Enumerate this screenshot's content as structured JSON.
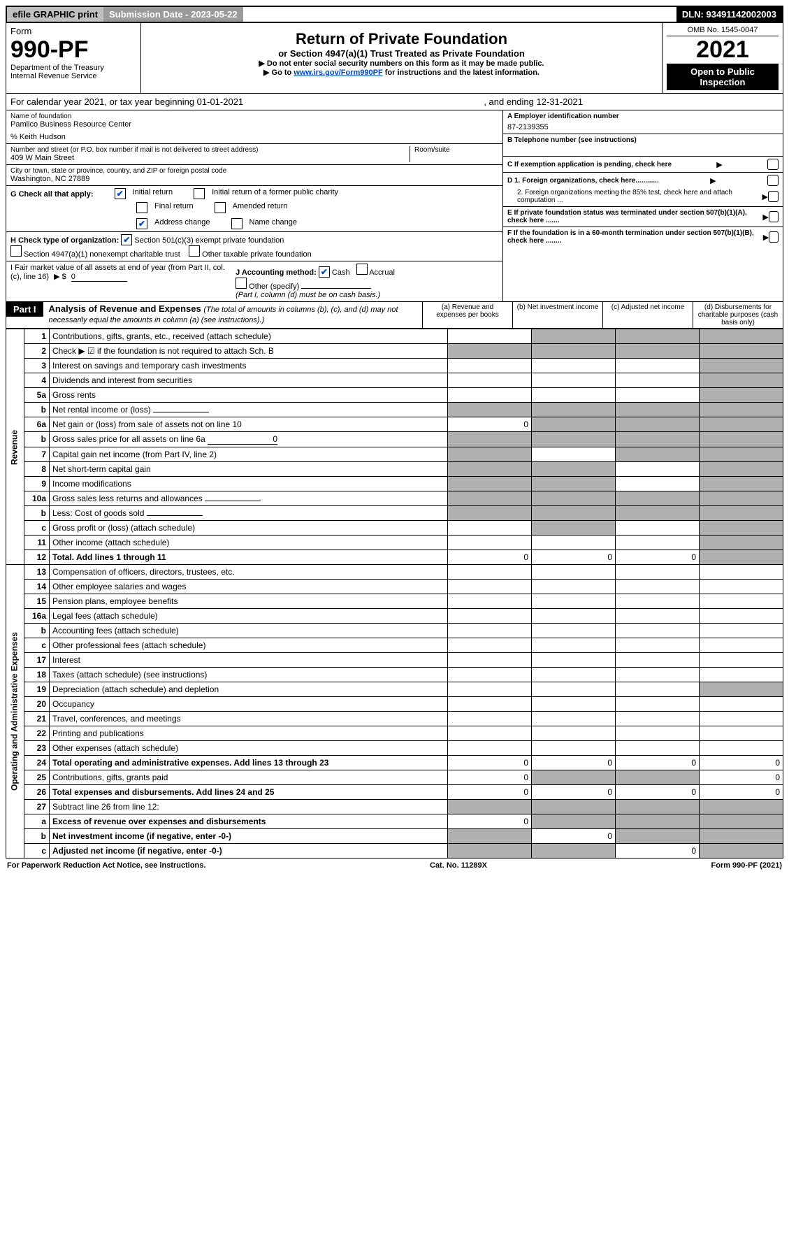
{
  "topbar": {
    "efile": "efile GRAPHIC print",
    "subdate_label": "Submission Date - ",
    "subdate": "2023-05-22",
    "dln_label": "DLN: ",
    "dln": "93491142002003"
  },
  "header": {
    "form_word": "Form",
    "form_num": "990-PF",
    "dept": "Department of the Treasury",
    "irs": "Internal Revenue Service",
    "title": "Return of Private Foundation",
    "subtitle": "or Section 4947(a)(1) Trust Treated as Private Foundation",
    "note1": "▶ Do not enter social security numbers on this form as it may be made public.",
    "note2_pre": "▶ Go to ",
    "note2_link": "www.irs.gov/Form990PF",
    "note2_post": " for instructions and the latest information.",
    "omb": "OMB No. 1545-0047",
    "year": "2021",
    "open": "Open to Public Inspection"
  },
  "cal": {
    "text": "For calendar year 2021, or tax year beginning 01-01-2021",
    "mid": "",
    "end": ", and ending 12-31-2021"
  },
  "name": {
    "label": "Name of foundation",
    "value": "Pamlico Business Resource Center",
    "care": "% Keith Hudson",
    "addr_label": "Number and street (or P.O. box number if mail is not delivered to street address)",
    "addr": "409 W Main Street",
    "room_label": "Room/suite",
    "city_label": "City or town, state or province, country, and ZIP or foreign postal code",
    "city": "Washington, NC  27889"
  },
  "right": {
    "a_label": "A Employer identification number",
    "a": "87-2139355",
    "b_label": "B Telephone number (see instructions)",
    "b": "",
    "c_label": "C If exemption application is pending, check here",
    "d1": "D 1. Foreign organizations, check here............",
    "d2": "2. Foreign organizations meeting the 85% test, check here and attach computation ...",
    "e": "E  If private foundation status was terminated under section 507(b)(1)(A), check here .......",
    "f": "F  If the foundation is in a 60-month termination under section 507(b)(1)(B), check here ........"
  },
  "g": {
    "label": "G Check all that apply:",
    "opts": [
      "Initial return",
      "Final return",
      "Address change",
      "Initial return of a former public charity",
      "Amended return",
      "Name change"
    ],
    "checked": [
      true,
      false,
      true,
      false,
      false,
      false
    ]
  },
  "h": {
    "label": "H Check type of organization:",
    "opts": [
      "Section 501(c)(3) exempt private foundation",
      "Section 4947(a)(1) nonexempt charitable trust",
      "Other taxable private foundation"
    ],
    "checked": [
      true,
      false,
      false
    ]
  },
  "i": {
    "label": "I Fair market value of all assets at end of year (from Part II, col. (c), line 16)",
    "arrow": "▶ $",
    "value": "0"
  },
  "j": {
    "label": "J Accounting method:",
    "opts": [
      "Cash",
      "Accrual",
      "Other (specify)"
    ],
    "checked": [
      true,
      false,
      false
    ],
    "note": "(Part I, column (d) must be on cash basis.)"
  },
  "part1": {
    "header": "Part I",
    "title": "Analysis of Revenue and Expenses",
    "note": "(The total of amounts in columns (b), (c), and (d) may not necessarily equal the amounts in column (a) (see instructions).)",
    "cols": [
      "(a)  Revenue and expenses per books",
      "(b)  Net investment income",
      "(c)  Adjusted net income",
      "(d)  Disbursements for charitable purposes (cash basis only)"
    ]
  },
  "sections": {
    "rev": "Revenue",
    "exp": "Operating and Administrative Expenses"
  },
  "rows": [
    {
      "n": "1",
      "d": "Contributions, gifts, grants, etc., received (attach schedule)",
      "s": [
        0,
        1,
        1,
        1
      ]
    },
    {
      "n": "2",
      "d": "Check ▶ ☑ if the foundation is not required to attach Sch. B",
      "s": [
        1,
        1,
        1,
        1
      ],
      "bold_not": true
    },
    {
      "n": "3",
      "d": "Interest on savings and temporary cash investments",
      "s": [
        0,
        0,
        0,
        1
      ]
    },
    {
      "n": "4",
      "d": "Dividends and interest from securities",
      "s": [
        0,
        0,
        0,
        1
      ]
    },
    {
      "n": "5a",
      "d": "Gross rents",
      "s": [
        0,
        0,
        0,
        1
      ]
    },
    {
      "n": "b",
      "d": "Net rental income or (loss)",
      "s": [
        1,
        1,
        1,
        1
      ],
      "inset": true
    },
    {
      "n": "6a",
      "d": "Net gain or (loss) from sale of assets not on line 10",
      "a": "0",
      "s": [
        0,
        1,
        1,
        1
      ]
    },
    {
      "n": "b",
      "d": "Gross sales price for all assets on line 6a",
      "s": [
        1,
        1,
        1,
        1
      ],
      "inset": true,
      "val_inset": "0"
    },
    {
      "n": "7",
      "d": "Capital gain net income (from Part IV, line 2)",
      "s": [
        1,
        0,
        1,
        1
      ]
    },
    {
      "n": "8",
      "d": "Net short-term capital gain",
      "s": [
        1,
        1,
        0,
        1
      ]
    },
    {
      "n": "9",
      "d": "Income modifications",
      "s": [
        1,
        1,
        0,
        1
      ]
    },
    {
      "n": "10a",
      "d": "Gross sales less returns and allowances",
      "s": [
        1,
        1,
        1,
        1
      ],
      "inset": true
    },
    {
      "n": "b",
      "d": "Less: Cost of goods sold",
      "s": [
        1,
        1,
        1,
        1
      ],
      "inset": true
    },
    {
      "n": "c",
      "d": "Gross profit or (loss) (attach schedule)",
      "s": [
        0,
        1,
        0,
        1
      ]
    },
    {
      "n": "11",
      "d": "Other income (attach schedule)",
      "s": [
        0,
        0,
        0,
        1
      ]
    },
    {
      "n": "12",
      "d": "Total. Add lines 1 through 11",
      "a": "0",
      "b": "0",
      "c": "0",
      "s": [
        0,
        0,
        0,
        1
      ],
      "bold": true
    },
    {
      "n": "13",
      "d": "Compensation of officers, directors, trustees, etc.",
      "s": [
        0,
        0,
        0,
        0
      ]
    },
    {
      "n": "14",
      "d": "Other employee salaries and wages",
      "s": [
        0,
        0,
        0,
        0
      ]
    },
    {
      "n": "15",
      "d": "Pension plans, employee benefits",
      "s": [
        0,
        0,
        0,
        0
      ]
    },
    {
      "n": "16a",
      "d": "Legal fees (attach schedule)",
      "s": [
        0,
        0,
        0,
        0
      ]
    },
    {
      "n": "b",
      "d": "Accounting fees (attach schedule)",
      "s": [
        0,
        0,
        0,
        0
      ]
    },
    {
      "n": "c",
      "d": "Other professional fees (attach schedule)",
      "s": [
        0,
        0,
        0,
        0
      ]
    },
    {
      "n": "17",
      "d": "Interest",
      "s": [
        0,
        0,
        0,
        0
      ]
    },
    {
      "n": "18",
      "d": "Taxes (attach schedule) (see instructions)",
      "s": [
        0,
        0,
        0,
        0
      ]
    },
    {
      "n": "19",
      "d": "Depreciation (attach schedule) and depletion",
      "s": [
        0,
        0,
        0,
        1
      ]
    },
    {
      "n": "20",
      "d": "Occupancy",
      "s": [
        0,
        0,
        0,
        0
      ]
    },
    {
      "n": "21",
      "d": "Travel, conferences, and meetings",
      "s": [
        0,
        0,
        0,
        0
      ]
    },
    {
      "n": "22",
      "d": "Printing and publications",
      "s": [
        0,
        0,
        0,
        0
      ]
    },
    {
      "n": "23",
      "d": "Other expenses (attach schedule)",
      "s": [
        0,
        0,
        0,
        0
      ]
    },
    {
      "n": "24",
      "d": "Total operating and administrative expenses. Add lines 13 through 23",
      "a": "0",
      "b": "0",
      "c": "0",
      "dd": "0",
      "s": [
        0,
        0,
        0,
        0
      ],
      "bold": true
    },
    {
      "n": "25",
      "d": "Contributions, gifts, grants paid",
      "a": "0",
      "dd": "0",
      "s": [
        0,
        1,
        1,
        0
      ]
    },
    {
      "n": "26",
      "d": "Total expenses and disbursements. Add lines 24 and 25",
      "a": "0",
      "b": "0",
      "c": "0",
      "dd": "0",
      "s": [
        0,
        0,
        0,
        0
      ],
      "bold": true
    },
    {
      "n": "27",
      "d": "Subtract line 26 from line 12:",
      "s": [
        1,
        1,
        1,
        1
      ]
    },
    {
      "n": "a",
      "d": "Excess of revenue over expenses and disbursements",
      "a": "0",
      "s": [
        0,
        1,
        1,
        1
      ],
      "bold": true
    },
    {
      "n": "b",
      "d": "Net investment income (if negative, enter -0-)",
      "b": "0",
      "s": [
        1,
        0,
        1,
        1
      ],
      "bold": true
    },
    {
      "n": "c",
      "d": "Adjusted net income (if negative, enter -0-)",
      "c": "0",
      "s": [
        1,
        1,
        0,
        1
      ],
      "bold": true
    }
  ],
  "footer": {
    "left": "For Paperwork Reduction Act Notice, see instructions.",
    "mid": "Cat. No. 11289X",
    "right": "Form 990-PF (2021)"
  }
}
